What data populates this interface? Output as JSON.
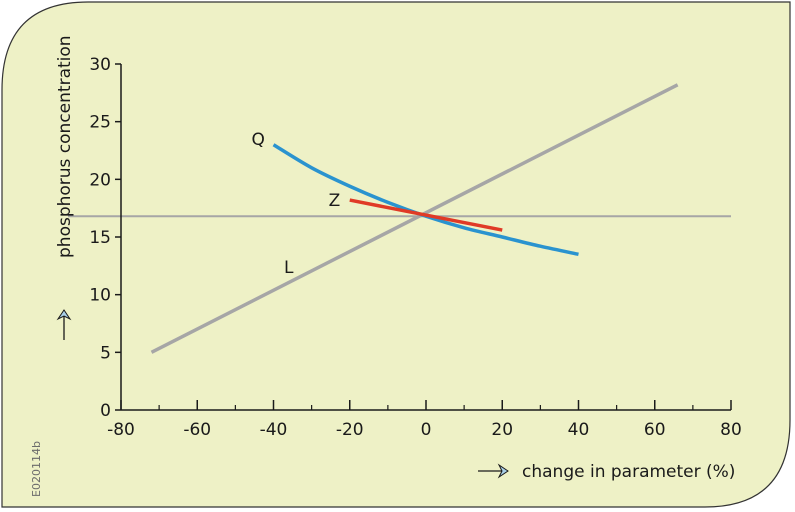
{
  "figure_code": "E020114b",
  "colors": {
    "panel_fill": "#eef1c6",
    "panel_stroke": "#333333",
    "axis": "#1a1a1a",
    "arrow_fill": "#a9cfe6",
    "line_L": "#a6a6a6",
    "ref_line": "#a6a6a6",
    "curve_Q": "#2a93cf",
    "curve_Z": "#e03a26"
  },
  "chart_data": {
    "type": "line",
    "title": "",
    "xlabel": "change in parameter (%)",
    "ylabel": "phosphorus concentration",
    "xlim": [
      -80,
      80
    ],
    "ylim": [
      0,
      30
    ],
    "x_ticks": [
      -80,
      -60,
      -40,
      -20,
      0,
      20,
      40,
      60,
      80
    ],
    "x_minor_ticks": [
      -70,
      -50,
      -30,
      -10,
      10,
      30,
      50,
      70
    ],
    "y_ticks": [
      0,
      5,
      10,
      15,
      20,
      25,
      30
    ],
    "grid": false,
    "legend": "none",
    "reference_line": {
      "y": 16.8
    },
    "series": [
      {
        "name": "L",
        "color": "#a6a6a6",
        "x": [
          -72,
          66
        ],
        "y": [
          5.0,
          28.2
        ]
      },
      {
        "name": "Q",
        "color": "#2a93cf",
        "x": [
          -40,
          -30,
          -20,
          -10,
          0,
          10,
          20,
          30,
          40
        ],
        "y": [
          23.0,
          21.0,
          19.4,
          18.0,
          16.8,
          15.8,
          15.0,
          14.2,
          13.5
        ]
      },
      {
        "name": "Z",
        "color": "#e03a26",
        "x": [
          -20,
          20
        ],
        "y": [
          18.2,
          15.6
        ]
      }
    ],
    "annotations": [
      {
        "text": "Q",
        "x": -44,
        "y": 23.5
      },
      {
        "text": "Z",
        "x": -24,
        "y": 18.2
      },
      {
        "text": "L",
        "x": -36,
        "y": 12.4
      }
    ]
  }
}
